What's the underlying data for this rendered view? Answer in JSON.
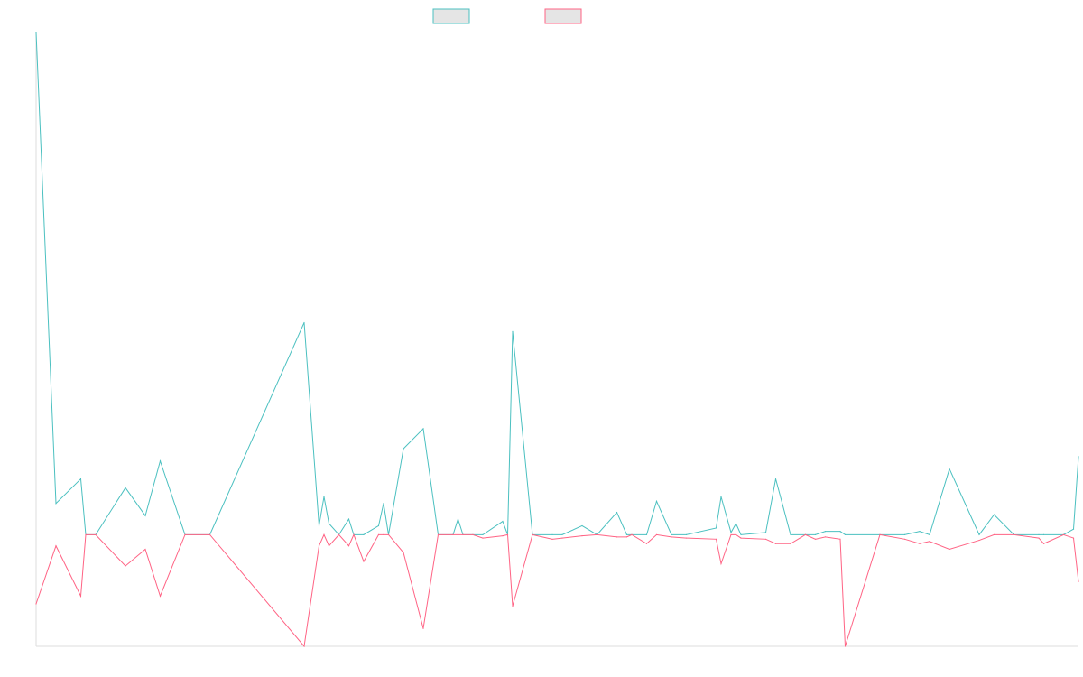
{
  "legend": {
    "position": "top-center",
    "items": [
      {
        "series_index": 0,
        "label": ""
      },
      {
        "series_index": 1,
        "label": ""
      }
    ]
  },
  "chart_data": {
    "type": "line",
    "title": "",
    "xlabel": "",
    "ylabel": "",
    "grid": false,
    "x": [
      0,
      4,
      9,
      10,
      12,
      18,
      22,
      25,
      30,
      31,
      35,
      54,
      57,
      58,
      59,
      61,
      63,
      64,
      66,
      69,
      70,
      71,
      74,
      78,
      81,
      84,
      85,
      86,
      88,
      90,
      94,
      95,
      96,
      100,
      104,
      106,
      110,
      113,
      117,
      119,
      120,
      123,
      125,
      128,
      131,
      137,
      138,
      140,
      141,
      142,
      147,
      149,
      152,
      155,
      157,
      159,
      162,
      163,
      170,
      175,
      178,
      180,
      184,
      190,
      193,
      197,
      202,
      203,
      207,
      209,
      210
    ],
    "ylim": [
      -100,
      450
    ],
    "series": [
      {
        "color": "#4bc0c0",
        "values": [
          450,
          28,
          50,
          0,
          0,
          42,
          17,
          66,
          0,
          0,
          0,
          190,
          8,
          34,
          10,
          0,
          14,
          0,
          0,
          8,
          28,
          0,
          77,
          95,
          0,
          0,
          14,
          0,
          0,
          0,
          12,
          0,
          182,
          0,
          0,
          0,
          8,
          0,
          20,
          0,
          0,
          0,
          30,
          0,
          0,
          6,
          34,
          2,
          10,
          0,
          2,
          50,
          0,
          0,
          0,
          3,
          3,
          0,
          0,
          0,
          3,
          0,
          59,
          0,
          18,
          0,
          0,
          0,
          0,
          5,
          70
        ]
      },
      {
        "color": "#ff6384",
        "values": [
          -62,
          -10,
          -55,
          0,
          0,
          -28,
          -13,
          -55,
          0,
          0,
          0,
          -100,
          -10,
          0,
          -10,
          0,
          -10,
          0,
          -24,
          0,
          0,
          0,
          -16,
          -84,
          0,
          0,
          0,
          0,
          0,
          -3,
          -1,
          0,
          -64,
          0,
          -4,
          -3,
          -1,
          0,
          -2,
          -2,
          0,
          -8,
          0,
          -2,
          -3,
          -4,
          -26,
          0,
          0,
          -3,
          -4,
          -8,
          -8,
          0,
          -4,
          -2,
          -4,
          -100,
          0,
          -4,
          -8,
          -6,
          -13,
          -5,
          0,
          0,
          -3,
          -8,
          0,
          -3,
          -42
        ]
      }
    ]
  }
}
